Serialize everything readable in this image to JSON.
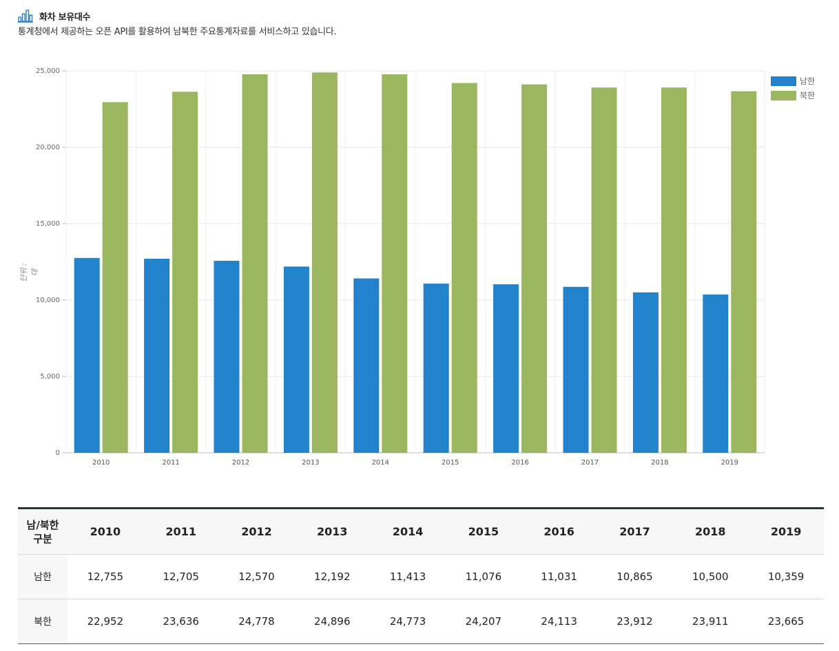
{
  "header": {
    "title": "화차 보유대수",
    "subtitle": "통계청에서 제공하는 오픈 API를 활용하여 남북한 주요통계자료를 서비스하고 있습니다."
  },
  "colors": {
    "south": "#2382cc",
    "north": "#9ab65f",
    "icon": "#2a7cc7"
  },
  "chart_data": {
    "type": "bar",
    "categories": [
      "2010",
      "2011",
      "2012",
      "2013",
      "2014",
      "2015",
      "2016",
      "2017",
      "2018",
      "2019"
    ],
    "series": [
      {
        "name": "남한",
        "values": [
          12755,
          12705,
          12570,
          12192,
          11413,
          11076,
          11031,
          10865,
          10500,
          10359
        ]
      },
      {
        "name": "북한",
        "values": [
          22952,
          23636,
          24778,
          24896,
          24773,
          24207,
          24113,
          23912,
          23911,
          23665
        ]
      }
    ],
    "ylabel": "단위 : 대",
    "ylim": [
      0,
      25000
    ],
    "yticks": [
      "0",
      "5,000",
      "10,000",
      "15,000",
      "20,000",
      "25,000"
    ],
    "grid": true,
    "legend_position": "top-right"
  },
  "table": {
    "header_first": [
      "남/북한",
      "구분"
    ],
    "years": [
      "2010",
      "2011",
      "2012",
      "2013",
      "2014",
      "2015",
      "2016",
      "2017",
      "2018",
      "2019"
    ],
    "rows": [
      {
        "label": "남한",
        "values": [
          "12,755",
          "12,705",
          "12,570",
          "12,192",
          "11,413",
          "11,076",
          "11,031",
          "10,865",
          "10,500",
          "10,359"
        ]
      },
      {
        "label": "북한",
        "values": [
          "22,952",
          "23,636",
          "24,778",
          "24,896",
          "24,773",
          "24,207",
          "24,113",
          "23,912",
          "23,911",
          "23,665"
        ]
      }
    ]
  }
}
